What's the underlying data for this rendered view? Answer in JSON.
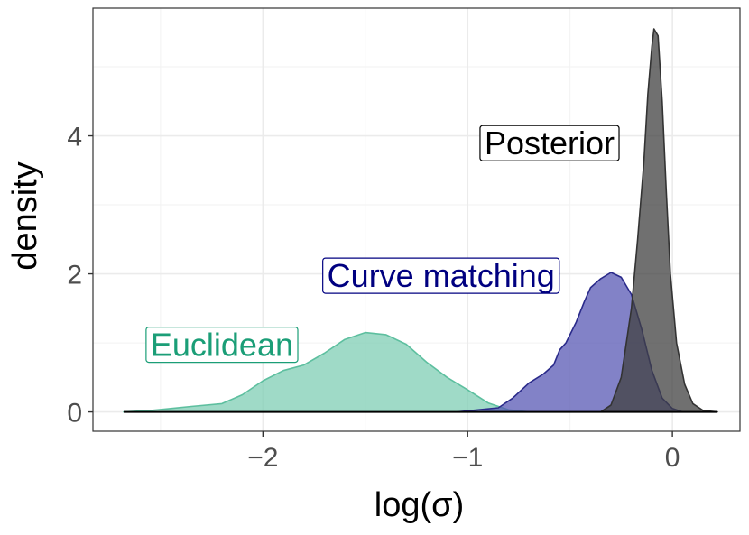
{
  "chart_data": {
    "type": "area",
    "title": "",
    "xlabel": "log(σ)",
    "ylabel": "density",
    "xlim": [
      -2.83,
      0.33
    ],
    "ylim": [
      -0.28,
      5.85
    ],
    "x_ticks": [
      {
        "value": -2,
        "label": "−2"
      },
      {
        "value": -1,
        "label": "−1"
      },
      {
        "value": 0,
        "label": "0"
      }
    ],
    "y_ticks": [
      {
        "value": 0,
        "label": "0"
      },
      {
        "value": 2,
        "label": "2"
      },
      {
        "value": 4,
        "label": "4"
      }
    ],
    "grid": true,
    "legend": "none",
    "series": [
      {
        "name": "Euclidean",
        "color": "#1b9e77",
        "fill": "#7fcdb4",
        "stroke": "#5dbf9f",
        "points": [
          [
            -2.68,
            0.0
          ],
          [
            -2.55,
            0.02
          ],
          [
            -2.45,
            0.05
          ],
          [
            -2.35,
            0.08
          ],
          [
            -2.2,
            0.12
          ],
          [
            -2.1,
            0.25
          ],
          [
            -2.0,
            0.45
          ],
          [
            -1.9,
            0.6
          ],
          [
            -1.8,
            0.68
          ],
          [
            -1.7,
            0.85
          ],
          [
            -1.6,
            1.05
          ],
          [
            -1.5,
            1.15
          ],
          [
            -1.4,
            1.12
          ],
          [
            -1.3,
            0.98
          ],
          [
            -1.2,
            0.72
          ],
          [
            -1.1,
            0.5
          ],
          [
            -1.0,
            0.32
          ],
          [
            -0.9,
            0.13
          ],
          [
            -0.8,
            0.03
          ],
          [
            -0.7,
            0.0
          ]
        ]
      },
      {
        "name": "Curve matching",
        "color": "#000080",
        "fill": "#5858b4",
        "stroke": "#2a2a8a",
        "points": [
          [
            -1.05,
            0.0
          ],
          [
            -0.95,
            0.03
          ],
          [
            -0.85,
            0.06
          ],
          [
            -0.78,
            0.2
          ],
          [
            -0.7,
            0.42
          ],
          [
            -0.63,
            0.55
          ],
          [
            -0.58,
            0.68
          ],
          [
            -0.55,
            0.9
          ],
          [
            -0.52,
            1.0
          ],
          [
            -0.47,
            1.3
          ],
          [
            -0.43,
            1.6
          ],
          [
            -0.4,
            1.8
          ],
          [
            -0.35,
            1.93
          ],
          [
            -0.3,
            2.02
          ],
          [
            -0.25,
            1.95
          ],
          [
            -0.2,
            1.7
          ],
          [
            -0.15,
            1.2
          ],
          [
            -0.1,
            0.6
          ],
          [
            -0.05,
            0.2
          ],
          [
            0.0,
            0.05
          ],
          [
            0.05,
            0.0
          ]
        ]
      },
      {
        "name": "Posterior",
        "color": "#000000",
        "fill": "#404040",
        "stroke": "#333333",
        "points": [
          [
            -0.35,
            0.0
          ],
          [
            -0.3,
            0.1
          ],
          [
            -0.25,
            0.5
          ],
          [
            -0.2,
            1.5
          ],
          [
            -0.17,
            2.5
          ],
          [
            -0.14,
            3.6
          ],
          [
            -0.12,
            4.6
          ],
          [
            -0.1,
            5.3
          ],
          [
            -0.09,
            5.55
          ],
          [
            -0.07,
            5.45
          ],
          [
            -0.05,
            4.5
          ],
          [
            -0.03,
            3.2
          ],
          [
            -0.01,
            2.0
          ],
          [
            0.02,
            1.0
          ],
          [
            0.06,
            0.4
          ],
          [
            0.1,
            0.12
          ],
          [
            0.15,
            0.02
          ],
          [
            0.22,
            0.0
          ]
        ]
      }
    ],
    "annotations": [
      {
        "text": "Posterior",
        "x": -0.6,
        "y": 3.9,
        "color": "#000000"
      },
      {
        "text": "Curve matching",
        "x": -1.13,
        "y": 1.98,
        "color": "#000080"
      },
      {
        "text": "Euclidean",
        "x": -2.2,
        "y": 0.98,
        "color": "#1b9e77"
      }
    ]
  }
}
